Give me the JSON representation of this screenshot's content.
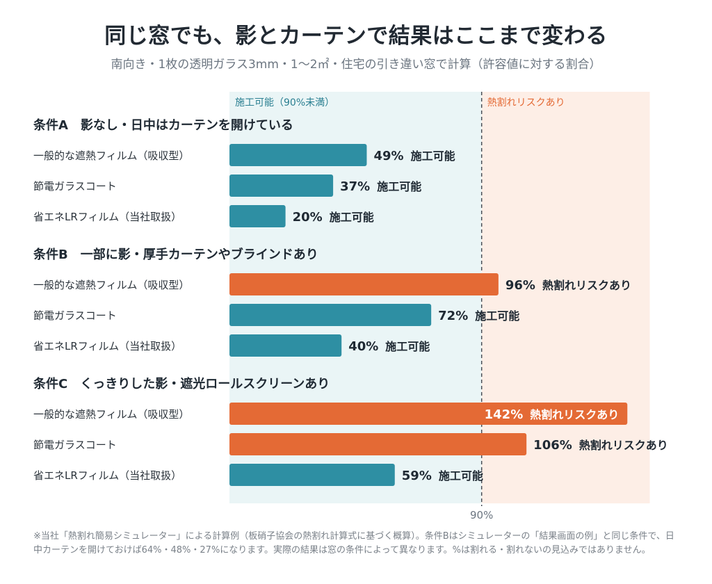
{
  "title": "同じ窓でも、影とカーテンで結果はここまで変わる",
  "subtitle": "南向き・1枚の透明ガラス3mm・1〜2㎡・住宅の引き違い窓で計算（許容値に対する割合）",
  "footnote": "※当社「熱割れ簡易シミュレーター」による計算例（板硝子協会の熱割れ計算式に基づく概算）。条件Bはシミュレーターの「結果画面の例」と同じ条件で、日中カーテンを開けておけば64%・48%・27%になります。実際の結果は窓の条件によって異なります。%は割れる・割れないの見込みではありません。",
  "colors": {
    "ok": "#2e8fa3",
    "risk": "#e46a35",
    "ok_zone": "#eaf5f6",
    "risk_zone": "#fdeee6",
    "ok_zone_text": "#2a7f91",
    "risk_zone_text": "#e46a35"
  },
  "chart_data": {
    "type": "bar",
    "orientation": "horizontal",
    "xlim": [
      0,
      150
    ],
    "unit": "%",
    "threshold": {
      "value": 90,
      "label": "90%"
    },
    "zones": {
      "ok_label": "施工可能（90%未満）",
      "risk_label": "熱割れリスクあり"
    },
    "groups": [
      {
        "title": "条件A　影なし・日中はカーテンを開けている",
        "bars": [
          {
            "label": "一般的な遮熱フィルム（吸収型）",
            "value": 49,
            "value_text": "49%",
            "status": "施工可能",
            "risk": false
          },
          {
            "label": "節電ガラスコート",
            "value": 37,
            "value_text": "37%",
            "status": "施工可能",
            "risk": false
          },
          {
            "label": "省エネLRフィルム（当社取扱）",
            "value": 20,
            "value_text": "20%",
            "status": "施工可能",
            "risk": false
          }
        ]
      },
      {
        "title": "条件B　一部に影・厚手カーテンやブラインドあり",
        "bars": [
          {
            "label": "一般的な遮熱フィルム（吸収型）",
            "value": 96,
            "value_text": "96%",
            "status": "熱割れリスクあり",
            "risk": true
          },
          {
            "label": "節電ガラスコート",
            "value": 72,
            "value_text": "72%",
            "status": "施工可能",
            "risk": false
          },
          {
            "label": "省エネLRフィルム（当社取扱）",
            "value": 40,
            "value_text": "40%",
            "status": "施工可能",
            "risk": false
          }
        ]
      },
      {
        "title": "条件C　くっきりした影・遮光ロールスクリーンあり",
        "bars": [
          {
            "label": "一般的な遮熱フィルム（吸収型）",
            "value": 142,
            "value_text": "142%",
            "status": "熱割れリスクあり",
            "risk": true
          },
          {
            "label": "節電ガラスコート",
            "value": 106,
            "value_text": "106%",
            "status": "熱割れリスクあり",
            "risk": true
          },
          {
            "label": "省エネLRフィルム（当社取扱）",
            "value": 59,
            "value_text": "59%",
            "status": "施工可能",
            "risk": false
          }
        ]
      }
    ]
  }
}
